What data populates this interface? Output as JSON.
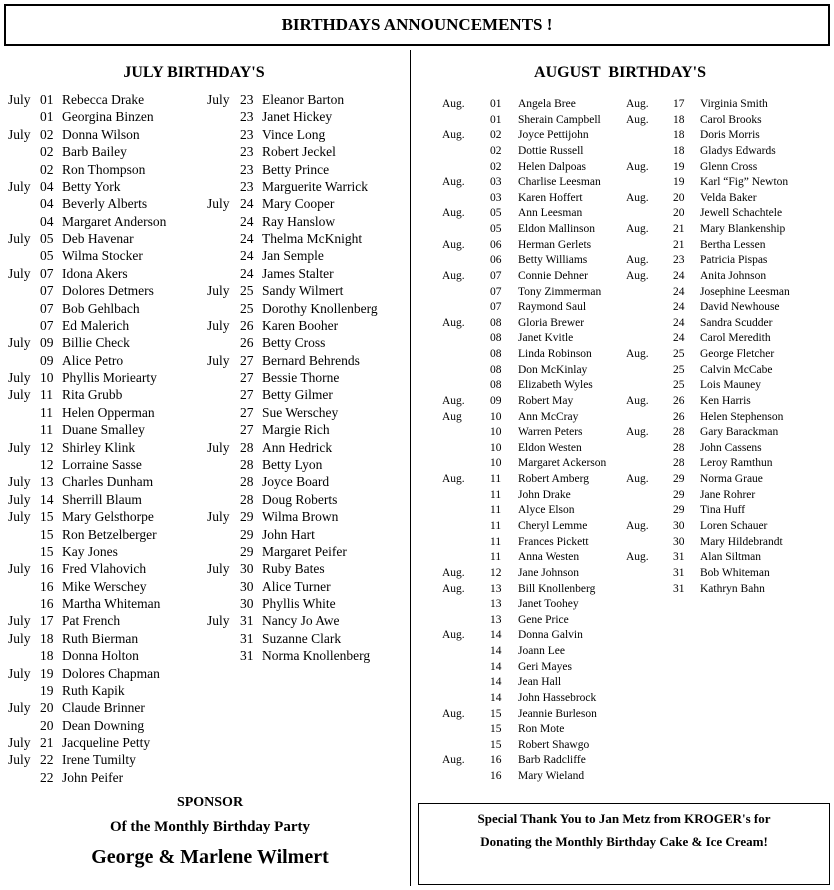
{
  "title": "BIRTHDAYS ANNOUNCEMENTS !",
  "july": {
    "heading": "JULY BIRTHDAY'S",
    "col1": [
      [
        "July",
        "01",
        "Rebecca Drake"
      ],
      [
        "",
        "01",
        "Georgina Binzen"
      ],
      [
        "July",
        "02",
        "Donna Wilson"
      ],
      [
        "",
        "02",
        "Barb Bailey"
      ],
      [
        "",
        "02",
        "Ron Thompson"
      ],
      [
        "July",
        "04",
        "Betty York"
      ],
      [
        "",
        "04",
        "Beverly Alberts"
      ],
      [
        "",
        "04",
        "Margaret Anderson"
      ],
      [
        "July",
        "05",
        "Deb Havenar"
      ],
      [
        "",
        "05",
        "Wilma Stocker"
      ],
      [
        "July",
        "07",
        "Idona Akers"
      ],
      [
        "",
        "07",
        "Dolores Detmers"
      ],
      [
        "",
        "07",
        "Bob Gehlbach"
      ],
      [
        "",
        "07",
        "Ed Malerich"
      ],
      [
        "July",
        "09",
        "Billie Check"
      ],
      [
        "",
        "09",
        "Alice Petro"
      ],
      [
        "July",
        "10",
        "Phyllis Moriearty"
      ],
      [
        "July",
        "11",
        "Rita Grubb"
      ],
      [
        "",
        "11",
        "Helen Opperman"
      ],
      [
        "",
        "11",
        "Duane Smalley"
      ],
      [
        "July",
        "12",
        "Shirley Klink"
      ],
      [
        "",
        "12",
        "Lorraine Sasse"
      ],
      [
        "July",
        "13",
        "Charles Dunham"
      ],
      [
        "July",
        "14",
        "Sherrill Blaum"
      ],
      [
        "July",
        "15",
        "Mary Gelsthorpe"
      ],
      [
        "",
        "15",
        "Ron Betzelberger"
      ],
      [
        "",
        "15",
        "Kay Jones"
      ],
      [
        "July",
        "16",
        "Fred Vlahovich"
      ],
      [
        "",
        "16",
        "Mike Werschey"
      ],
      [
        "",
        "16",
        "Martha Whiteman"
      ],
      [
        "July",
        "17",
        "Pat French"
      ],
      [
        "July",
        "18",
        "Ruth Bierman"
      ],
      [
        "",
        "18",
        "Donna Holton"
      ],
      [
        "July",
        "19",
        "Dolores Chapman"
      ],
      [
        "",
        "19",
        "Ruth Kapik"
      ],
      [
        "July",
        "20",
        "Claude Brinner"
      ],
      [
        "",
        "20",
        "Dean Downing"
      ],
      [
        "July",
        "21",
        "Jacqueline Petty"
      ],
      [
        "July",
        "22",
        "Irene Tumilty"
      ],
      [
        "",
        "22",
        "John Peifer"
      ]
    ],
    "col2": [
      [
        "July",
        "23",
        "Eleanor Barton"
      ],
      [
        "",
        "23",
        "Janet Hickey"
      ],
      [
        "",
        "23",
        "Vince Long"
      ],
      [
        "",
        "23",
        "Robert Jeckel"
      ],
      [
        "",
        "23",
        "Betty Prince"
      ],
      [
        "",
        "23",
        "Marguerite Warrick"
      ],
      [
        "July",
        "24",
        "Mary Cooper"
      ],
      [
        "",
        "24",
        "Ray Hanslow"
      ],
      [
        "",
        "24",
        "Thelma McKnight"
      ],
      [
        "",
        "24",
        "Jan Semple"
      ],
      [
        "",
        "24",
        "James Stalter"
      ],
      [
        "July",
        "25",
        "Sandy Wilmert"
      ],
      [
        "",
        "25",
        "Dorothy Knollenberg"
      ],
      [
        "July",
        "26",
        "Karen Booher"
      ],
      [
        "",
        "26",
        "Betty Cross"
      ],
      [
        "July",
        "27",
        "Bernard Behrends"
      ],
      [
        "",
        "27",
        "Bessie Thorne"
      ],
      [
        "",
        "27",
        "Betty Gilmer"
      ],
      [
        "",
        "27",
        "Sue Werschey"
      ],
      [
        "",
        "27",
        "Margie Rich"
      ],
      [
        "July",
        "28",
        "Ann Hedrick"
      ],
      [
        "",
        "28",
        "Betty Lyon"
      ],
      [
        "",
        "28",
        "Joyce Board"
      ],
      [
        "",
        "28",
        "Doug Roberts"
      ],
      [
        "July",
        "29",
        "Wilma Brown"
      ],
      [
        "",
        "29",
        "John Hart"
      ],
      [
        "",
        "29",
        "Margaret Peifer"
      ],
      [
        "July",
        "30",
        "Ruby Bates"
      ],
      [
        "",
        "30",
        "Alice Turner"
      ],
      [
        "",
        "30",
        "Phyllis White"
      ],
      [
        "July",
        "31",
        "Nancy Jo Awe"
      ],
      [
        "",
        "31",
        "Suzanne Clark"
      ],
      [
        "",
        "31",
        "Norma Knollenberg"
      ]
    ]
  },
  "august": {
    "heading": "AUGUST  BIRTHDAY'S",
    "col1": [
      [
        "Aug.",
        "01",
        "Angela Bree"
      ],
      [
        "",
        "01",
        "Sherain Campbell"
      ],
      [
        "Aug.",
        "02",
        "Joyce Pettijohn"
      ],
      [
        "",
        "02",
        "Dottie Russell"
      ],
      [
        "",
        "02",
        "Helen Dalpoas"
      ],
      [
        "Aug.",
        "03",
        "Charlise Leesman"
      ],
      [
        "",
        "03",
        "Karen Hoffert"
      ],
      [
        "Aug.",
        "05",
        "Ann Leesman"
      ],
      [
        "",
        "05",
        "Eldon Mallinson"
      ],
      [
        "Aug.",
        "06",
        "Herman Gerlets"
      ],
      [
        "",
        "06",
        "Betty Williams"
      ],
      [
        "Aug.",
        "07",
        "Connie Dehner"
      ],
      [
        "",
        "07",
        "Tony Zimmerman"
      ],
      [
        "",
        "07",
        "Raymond Saul"
      ],
      [
        "Aug.",
        "08",
        "Gloria Brewer"
      ],
      [
        "",
        "08",
        "Janet Kvitle"
      ],
      [
        "",
        "08",
        "Linda Robinson"
      ],
      [
        "",
        "08",
        "Don McKinlay"
      ],
      [
        "",
        "08",
        "Elizabeth Wyles"
      ],
      [
        "Aug.",
        "09",
        "Robert May"
      ],
      [
        "Aug",
        "10",
        "Ann McCray"
      ],
      [
        "",
        "10",
        "Warren Peters"
      ],
      [
        "",
        "10",
        "Eldon Westen"
      ],
      [
        "",
        "10",
        "Margaret Ackerson"
      ],
      [
        "Aug.",
        "11",
        "Robert Amberg"
      ],
      [
        "",
        "11",
        "John Drake"
      ],
      [
        "",
        "11",
        "Alyce Elson"
      ],
      [
        "",
        "11",
        "Cheryl Lemme"
      ],
      [
        "",
        "11",
        "Frances Pickett"
      ],
      [
        "",
        "11",
        "Anna Westen"
      ],
      [
        "Aug.",
        "12",
        "Jane Johnson"
      ],
      [
        "Aug.",
        "13",
        "Bill Knollenberg"
      ],
      [
        "",
        "13",
        "Janet Toohey"
      ],
      [
        "",
        "13",
        "Gene Price"
      ],
      [
        "Aug.",
        "14",
        "Donna Galvin"
      ],
      [
        "",
        "14",
        "Joann Lee"
      ],
      [
        "",
        "14",
        "Geri Mayes"
      ],
      [
        "",
        "14",
        "Jean Hall"
      ],
      [
        "",
        "14",
        "John Hassebrock"
      ],
      [
        "Aug.",
        "15",
        "Jeannie Burleson"
      ],
      [
        "",
        "15",
        "Ron Mote"
      ],
      [
        "",
        "15",
        "Robert Shawgo"
      ],
      [
        "Aug.",
        "16",
        "Barb Radcliffe"
      ],
      [
        "",
        "16",
        "Mary Wieland"
      ]
    ],
    "col2": [
      [
        "Aug.",
        "17",
        "Virginia Smith"
      ],
      [
        "Aug.",
        "18",
        "Carol Brooks"
      ],
      [
        "",
        "18",
        "Doris Morris"
      ],
      [
        "",
        "18",
        "Gladys Edwards"
      ],
      [
        "Aug.",
        "19",
        "Glenn Cross"
      ],
      [
        "",
        "19",
        "Karl “Fig” Newton"
      ],
      [
        "Aug.",
        "20",
        "Velda Baker"
      ],
      [
        "",
        "20",
        "Jewell Schachtele"
      ],
      [
        "Aug.",
        "21",
        "Mary Blankenship"
      ],
      [
        "",
        "21",
        "Bertha Lessen"
      ],
      [
        "Aug.",
        "23",
        "Patricia Pispas"
      ],
      [
        "Aug.",
        "24",
        "Anita Johnson"
      ],
      [
        "",
        "24",
        "Josephine Leesman"
      ],
      [
        "",
        "24",
        "David Newhouse"
      ],
      [
        "",
        "24",
        "Sandra Scudder"
      ],
      [
        "",
        "24",
        "Carol Meredith"
      ],
      [
        "Aug.",
        "25",
        "George Fletcher"
      ],
      [
        "",
        "25",
        "Calvin McCabe"
      ],
      [
        "",
        "25",
        "Lois Mauney"
      ],
      [
        "Aug.",
        "26",
        "Ken Harris"
      ],
      [
        "",
        "26",
        "Helen Stephenson"
      ],
      [
        "Aug.",
        "28",
        "Gary Barackman"
      ],
      [
        "",
        "28",
        "John Cassens"
      ],
      [
        "",
        "28",
        "Leroy Ramthun"
      ],
      [
        "Aug.",
        "29",
        "Norma Graue"
      ],
      [
        "",
        "29",
        "Jane Rohrer"
      ],
      [
        "",
        "29",
        "Tina Huff"
      ],
      [
        "Aug.",
        "30",
        "Loren Schauer"
      ],
      [
        "",
        "30",
        "Mary Hildebrandt"
      ],
      [
        "Aug.",
        "31",
        "Alan Siltman"
      ],
      [
        "",
        "31",
        "Bob Whiteman"
      ],
      [
        "",
        "31",
        "Kathryn Bahn"
      ]
    ]
  },
  "sponsor": {
    "label": "SPONSOR",
    "line": "Of the Monthly Birthday Party",
    "names": "George & Marlene Wilmert"
  },
  "thanks": {
    "line1": "Special Thank You to Jan Metz from KROGER's for",
    "line2": "Donating the Monthly Birthday Cake & Ice Cream!"
  }
}
